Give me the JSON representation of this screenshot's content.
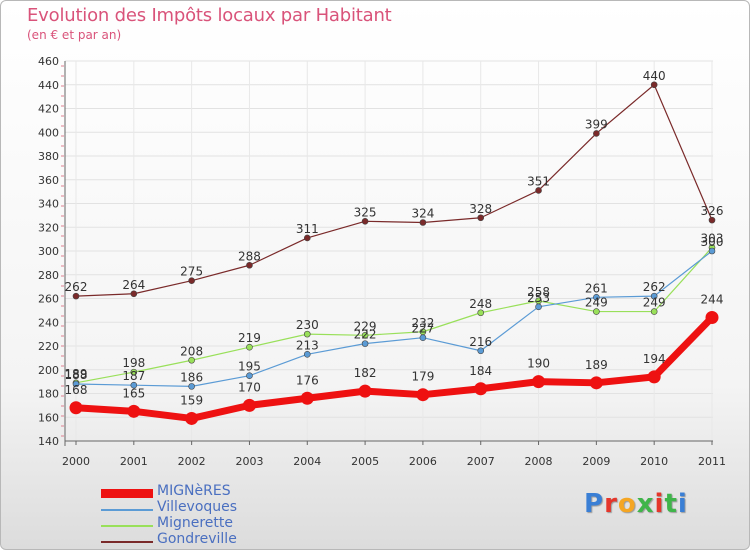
{
  "header": {
    "title": "Evolution des Impôts locaux par Habitant",
    "subtitle": "(en € et par an)"
  },
  "brand": {
    "text": "Proxiti"
  },
  "chart_data": {
    "type": "line",
    "title": "Evolution des Impôts locaux par Habitant",
    "subtitle": "(en € et par an)",
    "categories": [
      "2000",
      "2001",
      "2002",
      "2003",
      "2004",
      "2005",
      "2006",
      "2007",
      "2008",
      "2009",
      "2010",
      "2011"
    ],
    "ylim": [
      140,
      460
    ],
    "yticks": [
      140,
      160,
      180,
      200,
      220,
      240,
      260,
      280,
      300,
      320,
      340,
      360,
      380,
      400,
      420,
      440,
      460
    ],
    "grid": true,
    "legend_position": "bottom-left",
    "series": [
      {
        "name": "MIGNèRES",
        "color": "#ee1111",
        "values": [
          168,
          165,
          159,
          170,
          176,
          182,
          179,
          184,
          190,
          189,
          194,
          244
        ],
        "labeled": true
      },
      {
        "name": "Villevoques",
        "color": "#5b9bd5",
        "values": [
          188,
          187,
          186,
          195,
          213,
          222,
          227,
          216,
          253,
          261,
          262,
          300
        ],
        "labeled": true
      },
      {
        "name": "Mignerette",
        "color": "#99e05a",
        "values": [
          189,
          198,
          208,
          219,
          230,
          229,
          232,
          248,
          258,
          249,
          249,
          303
        ],
        "labeled": true
      },
      {
        "name": "Gondreville",
        "color": "#7a2a2a",
        "values": [
          262,
          264,
          275,
          288,
          311,
          325,
          324,
          328,
          351,
          399,
          440,
          326
        ],
        "labeled": true
      }
    ]
  }
}
